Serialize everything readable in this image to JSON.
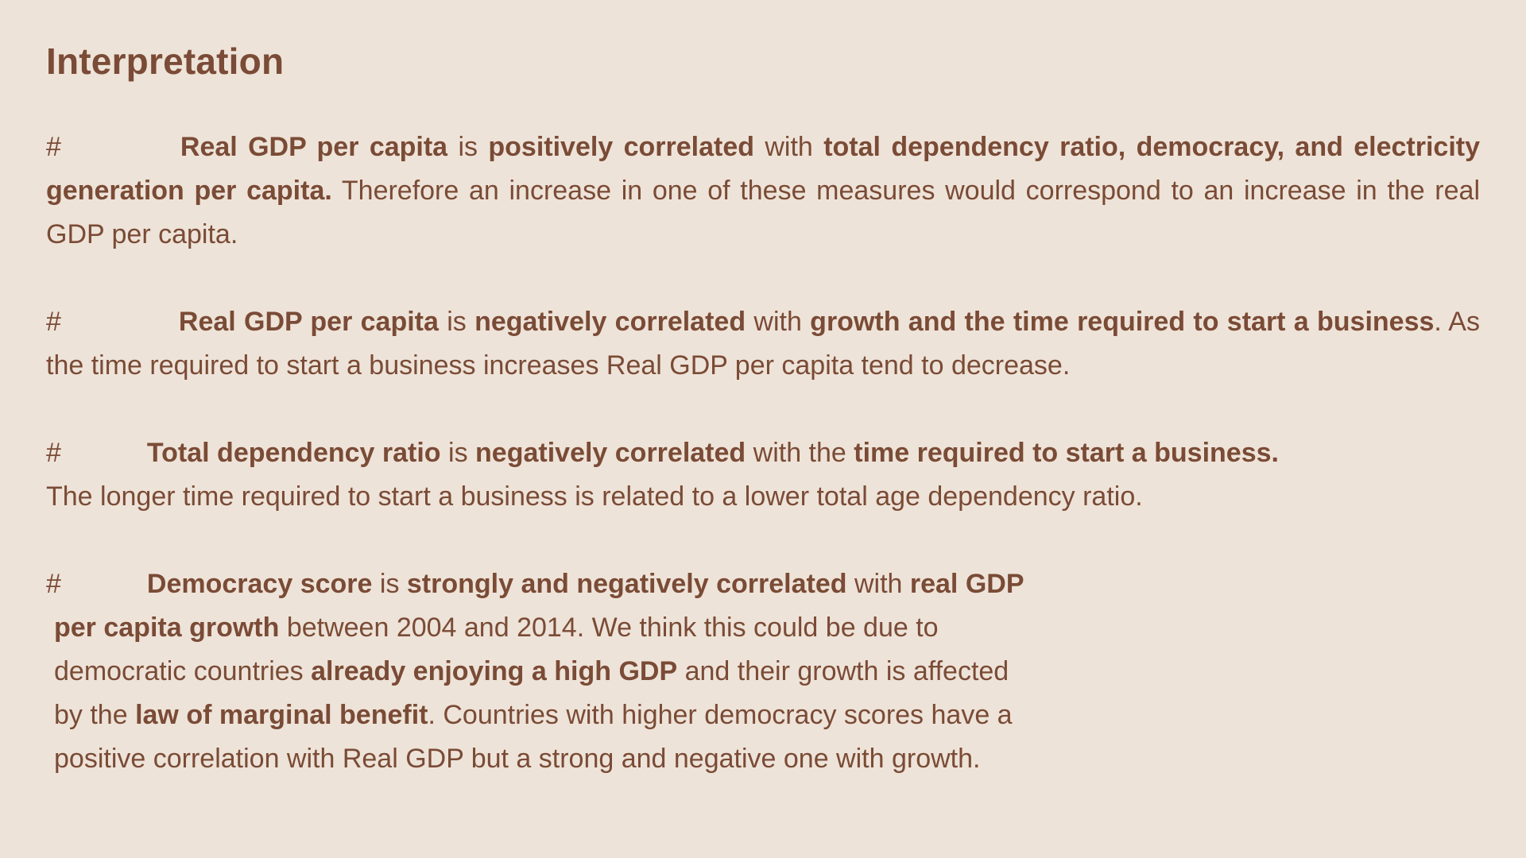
{
  "title": "Interpretation",
  "p1": {
    "bullet": "#",
    "s1": "Real GDP per capita",
    "s2": " is ",
    "s3": "positively correlated",
    "s4": " with ",
    "s5": "total dependency ratio, democracy, and electricity generation per capita.",
    "s6": " Therefore an increase in one of these measures would correspond to an increase in the real GDP per capita."
  },
  "p2": {
    "bullet": "#",
    "s1": "Real GDP per capita",
    "s2": " is ",
    "s3": "negatively correlated",
    "s4": " with ",
    "s5": "growth and the time required to start a business",
    "s6": ". As the time required to start a business increases Real GDP per capita tend to decrease."
  },
  "p3": {
    "bullet": "#",
    "s1": "Total dependency ratio",
    "s2": " is ",
    "s3": "negatively correlated",
    "s4": " with the ",
    "s5": "time required to start a business.",
    "s6": "The longer time required to start a business is related to a lower total age dependency ratio."
  },
  "p4": {
    "bullet": "#",
    "l1a": "Democracy score",
    "l1b": " is ",
    "l1c": "strongly and negatively correlated",
    "l1d": " with ",
    "l1e": "real GDP",
    "l2a": "per capita growth",
    "l2b": " between 2004 and 2014. We think this could be due to",
    "l3a": "democratic countries ",
    "l3b": "already enjoying a high GDP",
    "l3c": " and their growth is affected",
    "l4a": "by the ",
    "l4b": "law of marginal benefit",
    "l4c": ". Countries with higher democracy scores have a",
    "l5a": "positive correlation with Real GDP but a strong and negative one with growth."
  }
}
